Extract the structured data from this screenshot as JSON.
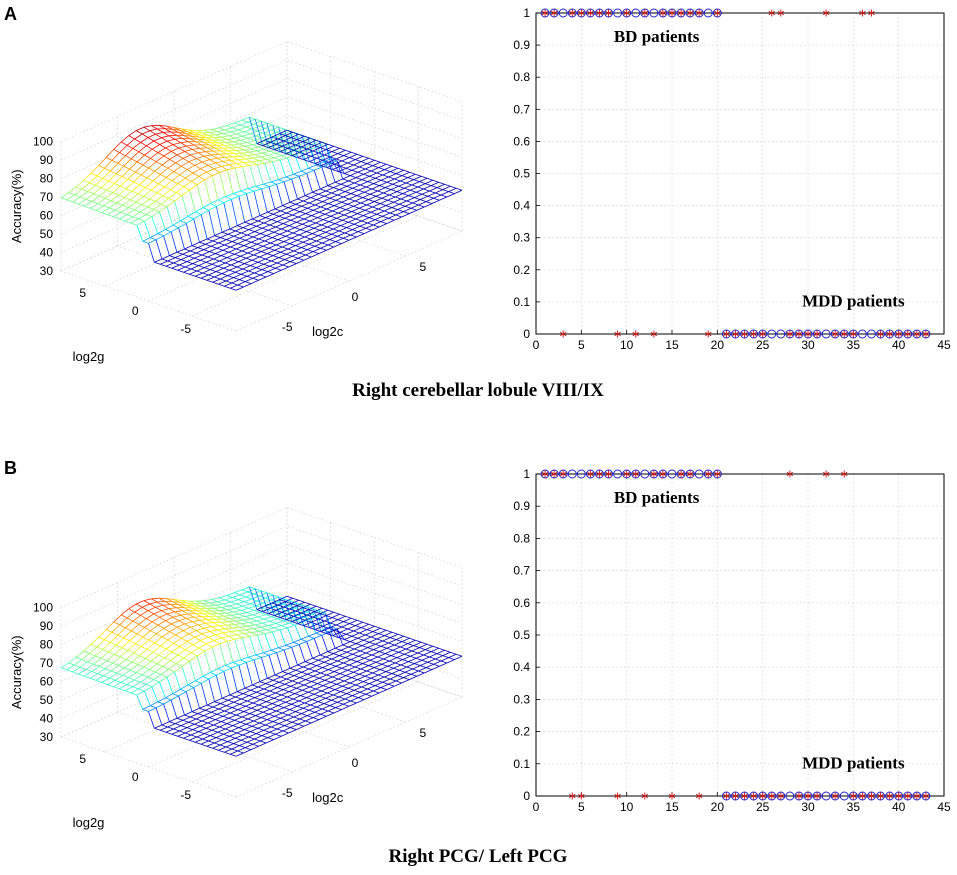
{
  "panels": [
    {
      "letter": "A",
      "caption": "Right cerebellar lobule VIII/IX",
      "surface": {
        "zlabel": "Accuracy(%)",
        "xlabel": "log2c",
        "ylabel": "log2g",
        "zticks": [
          "30",
          "40",
          "50",
          "60",
          "70",
          "80",
          "90",
          "100"
        ],
        "gticks": [
          "5",
          "0",
          "-5"
        ],
        "cticks": [
          "-5",
          "0",
          "5"
        ],
        "plateau_baseline": 52,
        "plateau_high": 68,
        "peak": 88
      },
      "scatter": {
        "type": "scatter",
        "xlim": [
          0,
          45
        ],
        "ylim": [
          0,
          1
        ],
        "xticks": [
          "0",
          "5",
          "10",
          "15",
          "20",
          "25",
          "30",
          "35",
          "40",
          "45"
        ],
        "yticks": [
          "0",
          "0.1",
          "0.2",
          "0.3",
          "0.4",
          "0.5",
          "0.6",
          "0.7",
          "0.8",
          "0.9",
          "1"
        ],
        "labels": {
          "bd": "BD patients",
          "mdd": "MDD patients"
        },
        "true_labels": {
          "x": [
            1,
            2,
            3,
            4,
            5,
            6,
            7,
            8,
            9,
            10,
            11,
            12,
            13,
            14,
            15,
            16,
            17,
            18,
            19,
            20,
            21,
            22,
            23,
            24,
            25,
            26,
            27,
            28,
            29,
            30,
            31,
            32,
            33,
            34,
            35,
            36,
            37,
            38,
            39,
            40,
            41,
            42,
            43
          ],
          "y": [
            1,
            1,
            1,
            1,
            1,
            1,
            1,
            1,
            1,
            1,
            1,
            1,
            1,
            1,
            1,
            1,
            1,
            1,
            1,
            1,
            0,
            0,
            0,
            0,
            0,
            0,
            0,
            0,
            0,
            0,
            0,
            0,
            0,
            0,
            0,
            0,
            0,
            0,
            0,
            0,
            0,
            0,
            0
          ]
        },
        "predicted": {
          "x": [
            1,
            2,
            3,
            4,
            5,
            6,
            7,
            8,
            9,
            10,
            11,
            12,
            13,
            14,
            15,
            16,
            17,
            18,
            19,
            20,
            21,
            22,
            23,
            24,
            25,
            26,
            27,
            28,
            29,
            30,
            31,
            32,
            33,
            34,
            35,
            36,
            37,
            38,
            39,
            40,
            41,
            42,
            43
          ],
          "y": [
            1,
            1,
            0,
            1,
            1,
            1,
            1,
            1,
            0,
            1,
            0,
            1,
            0,
            1,
            1,
            1,
            1,
            1,
            0,
            1,
            0,
            0,
            0,
            0,
            0,
            1,
            1,
            0,
            0,
            0,
            0,
            1,
            0,
            0,
            0,
            1,
            1,
            0,
            0,
            0,
            0,
            0,
            0
          ]
        }
      }
    },
    {
      "letter": "B",
      "caption": "Right PCG/ Left PCG",
      "surface": {
        "zlabel": "Accuracy(%)",
        "xlabel": "log2c",
        "ylabel": "log2g",
        "zticks": [
          "30",
          "40",
          "50",
          "60",
          "70",
          "80",
          "90",
          "100"
        ],
        "gticks": [
          "5",
          "0",
          "-5"
        ],
        "cticks": [
          "-5",
          "0",
          "5"
        ],
        "plateau_baseline": 52,
        "plateau_high": 66,
        "peak": 84
      },
      "scatter": {
        "type": "scatter",
        "xlim": [
          0,
          45
        ],
        "ylim": [
          0,
          1
        ],
        "xticks": [
          "0",
          "5",
          "10",
          "15",
          "20",
          "25",
          "30",
          "35",
          "40",
          "45"
        ],
        "yticks": [
          "0",
          "0.1",
          "0.2",
          "0.3",
          "0.4",
          "0.5",
          "0.6",
          "0.7",
          "0.8",
          "0.9",
          "1"
        ],
        "labels": {
          "bd": "BD patients",
          "mdd": "MDD patients"
        },
        "true_labels": {
          "x": [
            1,
            2,
            3,
            4,
            5,
            6,
            7,
            8,
            9,
            10,
            11,
            12,
            13,
            14,
            15,
            16,
            17,
            18,
            19,
            20,
            21,
            22,
            23,
            24,
            25,
            26,
            27,
            28,
            29,
            30,
            31,
            32,
            33,
            34,
            35,
            36,
            37,
            38,
            39,
            40,
            41,
            42,
            43
          ],
          "y": [
            1,
            1,
            1,
            1,
            1,
            1,
            1,
            1,
            1,
            1,
            1,
            1,
            1,
            1,
            1,
            1,
            1,
            1,
            1,
            1,
            0,
            0,
            0,
            0,
            0,
            0,
            0,
            0,
            0,
            0,
            0,
            0,
            0,
            0,
            0,
            0,
            0,
            0,
            0,
            0,
            0,
            0,
            0
          ]
        },
        "predicted": {
          "x": [
            1,
            2,
            3,
            4,
            5,
            6,
            7,
            8,
            9,
            10,
            11,
            12,
            13,
            14,
            15,
            16,
            17,
            18,
            19,
            20,
            21,
            22,
            23,
            24,
            25,
            26,
            27,
            28,
            29,
            30,
            31,
            32,
            33,
            34,
            35,
            36,
            37,
            38,
            39,
            40,
            41,
            42,
            43
          ],
          "y": [
            1,
            1,
            1,
            0,
            0,
            1,
            1,
            1,
            0,
            1,
            1,
            0,
            1,
            1,
            0,
            1,
            1,
            0,
            1,
            1,
            0,
            0,
            0,
            0,
            0,
            0,
            0,
            1,
            0,
            0,
            0,
            1,
            0,
            1,
            0,
            0,
            0,
            0,
            0,
            0,
            0,
            0,
            0
          ]
        }
      }
    }
  ],
  "chart_data": [
    {
      "type": "scatter",
      "title": "Right cerebellar lobule VIII/IX (A)",
      "series": [
        {
          "name": "true label (circle)",
          "x": [
            1,
            2,
            3,
            4,
            5,
            6,
            7,
            8,
            9,
            10,
            11,
            12,
            13,
            14,
            15,
            16,
            17,
            18,
            19,
            20,
            21,
            22,
            23,
            24,
            25,
            26,
            27,
            28,
            29,
            30,
            31,
            32,
            33,
            34,
            35,
            36,
            37,
            38,
            39,
            40,
            41,
            42,
            43
          ],
          "values": [
            1,
            1,
            1,
            1,
            1,
            1,
            1,
            1,
            1,
            1,
            1,
            1,
            1,
            1,
            1,
            1,
            1,
            1,
            1,
            1,
            0,
            0,
            0,
            0,
            0,
            0,
            0,
            0,
            0,
            0,
            0,
            0,
            0,
            0,
            0,
            0,
            0,
            0,
            0,
            0,
            0,
            0,
            0
          ]
        },
        {
          "name": "predicted (asterisk)",
          "x": [
            1,
            2,
            3,
            4,
            5,
            6,
            7,
            8,
            9,
            10,
            11,
            12,
            13,
            14,
            15,
            16,
            17,
            18,
            19,
            20,
            21,
            22,
            23,
            24,
            25,
            26,
            27,
            28,
            29,
            30,
            31,
            32,
            33,
            34,
            35,
            36,
            37,
            38,
            39,
            40,
            41,
            42,
            43
          ],
          "values": [
            1,
            1,
            0,
            1,
            1,
            1,
            1,
            1,
            0,
            1,
            0,
            1,
            0,
            1,
            1,
            1,
            1,
            1,
            0,
            1,
            0,
            0,
            0,
            0,
            0,
            1,
            1,
            0,
            0,
            0,
            0,
            1,
            0,
            0,
            0,
            1,
            1,
            0,
            0,
            0,
            0,
            0,
            0
          ]
        }
      ],
      "xlim": [
        0,
        45
      ],
      "ylim": [
        0,
        1
      ],
      "annotations": [
        "BD patients",
        "MDD patients"
      ]
    },
    {
      "type": "scatter",
      "title": "Right PCG/ Left PCG (B)",
      "series": [
        {
          "name": "true label (circle)",
          "x": [
            1,
            2,
            3,
            4,
            5,
            6,
            7,
            8,
            9,
            10,
            11,
            12,
            13,
            14,
            15,
            16,
            17,
            18,
            19,
            20,
            21,
            22,
            23,
            24,
            25,
            26,
            27,
            28,
            29,
            30,
            31,
            32,
            33,
            34,
            35,
            36,
            37,
            38,
            39,
            40,
            41,
            42,
            43
          ],
          "values": [
            1,
            1,
            1,
            1,
            1,
            1,
            1,
            1,
            1,
            1,
            1,
            1,
            1,
            1,
            1,
            1,
            1,
            1,
            1,
            1,
            0,
            0,
            0,
            0,
            0,
            0,
            0,
            0,
            0,
            0,
            0,
            0,
            0,
            0,
            0,
            0,
            0,
            0,
            0,
            0,
            0,
            0,
            0
          ]
        },
        {
          "name": "predicted (asterisk)",
          "x": [
            1,
            2,
            3,
            4,
            5,
            6,
            7,
            8,
            9,
            10,
            11,
            12,
            13,
            14,
            15,
            16,
            17,
            18,
            19,
            20,
            21,
            22,
            23,
            24,
            25,
            26,
            27,
            28,
            29,
            30,
            31,
            32,
            33,
            34,
            35,
            36,
            37,
            38,
            39,
            40,
            41,
            42,
            43
          ],
          "values": [
            1,
            1,
            1,
            0,
            0,
            1,
            1,
            1,
            0,
            1,
            1,
            0,
            1,
            1,
            0,
            1,
            1,
            0,
            1,
            1,
            0,
            0,
            0,
            0,
            0,
            0,
            0,
            1,
            0,
            0,
            0,
            1,
            0,
            1,
            0,
            0,
            0,
            0,
            0,
            0,
            0,
            0,
            0
          ]
        }
      ],
      "xlim": [
        0,
        45
      ],
      "ylim": [
        0,
        1
      ],
      "annotations": [
        "BD patients",
        "MDD patients"
      ]
    }
  ]
}
